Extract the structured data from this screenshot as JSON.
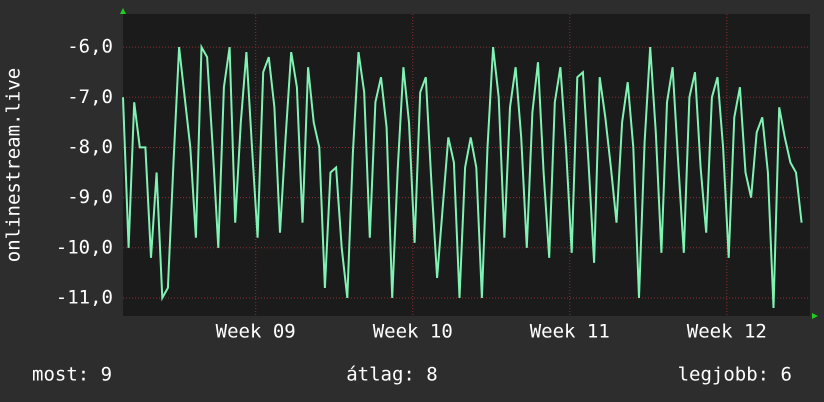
{
  "chart_data": {
    "type": "line",
    "y_label": "onlinestream.live",
    "x": [
      0,
      6,
      12,
      18,
      24,
      30,
      36,
      42,
      48,
      54,
      60,
      66,
      72,
      78,
      84,
      90,
      96,
      102,
      108,
      114,
      120,
      126,
      132,
      138,
      144,
      150,
      156,
      162,
      168,
      174,
      180,
      186,
      192,
      198,
      204,
      210,
      216,
      222,
      228,
      234,
      240,
      246,
      252,
      258,
      264,
      270,
      276,
      282,
      288,
      294,
      300,
      306,
      312,
      318,
      324,
      330,
      336,
      342,
      348,
      354,
      360,
      366,
      372,
      378,
      384,
      390,
      396,
      402,
      408,
      414,
      420,
      426,
      432,
      438,
      444,
      450,
      456,
      462,
      468,
      474,
      480,
      486,
      492,
      498,
      504,
      510,
      516,
      522,
      528,
      534,
      540,
      546,
      552,
      558,
      564,
      570,
      576,
      582,
      588,
      594,
      600,
      606,
      612,
      618,
      624,
      630,
      636,
      642,
      648,
      654,
      660,
      666,
      672,
      678,
      684,
      690,
      696,
      702,
      708,
      714,
      720,
      726
    ],
    "series": [
      {
        "name": null,
        "color": "#7ff2b4",
        "values": [
          -7,
          -10,
          -7.1,
          -8,
          -8,
          -10.2,
          -8.5,
          -11,
          -10.8,
          -8.3,
          -6,
          -7,
          -8,
          -9.8,
          -6,
          -6.2,
          -8,
          -10,
          -6.8,
          -6,
          -9.5,
          -7.5,
          -6.1,
          -8,
          -9.8,
          -6.5,
          -6.2,
          -7.2,
          -9.7,
          -7.8,
          -6.1,
          -6.8,
          -9.5,
          -6.4,
          -7.5,
          -8,
          -10.8,
          -8.5,
          -8.4,
          -10,
          -11,
          -8.1,
          -6.1,
          -6.9,
          -9.8,
          -7.1,
          -6.6,
          -7.6,
          -11,
          -8.4,
          -6.4,
          -7.5,
          -9.9,
          -6.9,
          -6.6,
          -8.7,
          -10.6,
          -9.2,
          -7.8,
          -8.3,
          -11,
          -8.4,
          -7.8,
          -8.4,
          -11,
          -8,
          -6,
          -7,
          -9.8,
          -7.2,
          -6.4,
          -7.8,
          -10,
          -7.3,
          -6.3,
          -8.5,
          -10.2,
          -7.1,
          -6.4,
          -8,
          -10.1,
          -6.6,
          -6.5,
          -8.3,
          -10.3,
          -6.6,
          -7.4,
          -8.4,
          -9.5,
          -7.5,
          -6.7,
          -8,
          -11,
          -7.9,
          -6,
          -7.7,
          -10.1,
          -7.1,
          -6.4,
          -8.3,
          -10.1,
          -7,
          -6.5,
          -8.4,
          -9.7,
          -7,
          -6.6,
          -8,
          -10.2,
          -7.4,
          -6.8,
          -8.5,
          -9,
          -7.7,
          -7.4,
          -8.5,
          -11.2,
          -7.2,
          -7.8,
          -8.3,
          -8.5,
          -9.5
        ]
      }
    ],
    "xlim": [
      0,
      735
    ],
    "xticks": [
      {
        "value": 142,
        "label": "Week 09"
      },
      {
        "value": 310,
        "label": "Week 10"
      },
      {
        "value": 478,
        "label": "Week 11"
      },
      {
        "value": 646,
        "label": "Week 12"
      }
    ],
    "ylim": [
      -11.36,
      -5.34
    ],
    "yticks": [
      {
        "value": -11,
        "label": "-11,0"
      },
      {
        "value": -10,
        "label": "-10,0"
      },
      {
        "value": -9,
        "label": "-9,0"
      },
      {
        "value": -8,
        "label": "-8,0"
      },
      {
        "value": -7,
        "label": "-7,0"
      },
      {
        "value": -6,
        "label": "-6,0"
      }
    ],
    "grid": true,
    "footer": {
      "current": "most: 9",
      "average": "átlag: 8",
      "best": "legjobb: 6"
    }
  }
}
